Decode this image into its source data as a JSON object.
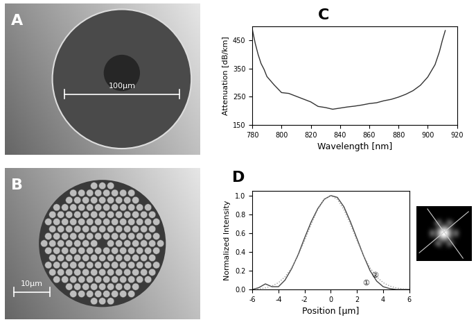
{
  "chart_data": [
    {
      "type": "line",
      "title": "C",
      "x_label": "Wavelength [nm]",
      "y_label": "Attenuation [dB/km]",
      "x": [
        780,
        782,
        784,
        786,
        788,
        790,
        795,
        800,
        805,
        810,
        815,
        820,
        825,
        830,
        835,
        840,
        845,
        850,
        855,
        860,
        865,
        870,
        875,
        880,
        885,
        890,
        895,
        900,
        905,
        908,
        910,
        912
      ],
      "series": [
        {
          "color": "#333333",
          "line_style": "solid",
          "values": [
            490,
            440,
            400,
            368,
            348,
            322,
            292,
            265,
            262,
            252,
            242,
            232,
            216,
            212,
            206,
            210,
            214,
            217,
            221,
            226,
            229,
            236,
            241,
            249,
            259,
            272,
            291,
            320,
            364,
            410,
            450,
            485
          ]
        }
      ],
      "xlim": [
        780,
        920
      ],
      "xticks": [
        780,
        800,
        820,
        840,
        860,
        880,
        900,
        920
      ],
      "ylim": [
        150,
        500
      ],
      "yticks": [
        150,
        250,
        350,
        450
      ],
      "grid": false
    },
    {
      "type": "line",
      "title": "D",
      "x_label": "Position [µm]",
      "y_label": "Normalized Intensity",
      "x": [
        -6,
        -5.5,
        -5,
        -4.5,
        -4,
        -3.5,
        -3,
        -2.5,
        -2,
        -1.5,
        -1,
        -0.5,
        0,
        0.5,
        1,
        1.5,
        2,
        2.5,
        3,
        3.5,
        4,
        4.5,
        5,
        5.5,
        6
      ],
      "series": [
        {
          "color": "#444444",
          "line_style": "solid",
          "values": [
            0.0,
            0.02,
            0.06,
            0.03,
            0.03,
            0.1,
            0.22,
            0.37,
            0.55,
            0.72,
            0.86,
            0.96,
            1.0,
            0.98,
            0.88,
            0.72,
            0.54,
            0.36,
            0.2,
            0.09,
            0.03,
            0.01,
            0.0,
            0.0,
            0.0
          ]
        },
        {
          "color": "#999999",
          "line_style": "dotted",
          "values": [
            0.003,
            0.007,
            0.017,
            0.037,
            0.073,
            0.135,
            0.23,
            0.36,
            0.52,
            0.693,
            0.849,
            0.96,
            1.0,
            0.96,
            0.849,
            0.693,
            0.52,
            0.36,
            0.23,
            0.135,
            0.073,
            0.037,
            0.017,
            0.007,
            0.003
          ]
        }
      ],
      "annotations": [
        {
          "text": "①",
          "x": 2.7,
          "y": 0.07
        },
        {
          "text": "②",
          "x": 3.4,
          "y": 0.15
        }
      ],
      "xlim": [
        -6,
        6
      ],
      "xticks": [
        -6,
        -4,
        -2,
        0,
        2,
        4,
        6
      ],
      "ylim": [
        0,
        1.05
      ],
      "yticks": [
        {
          "value": 0.0,
          "label": "0.0"
        },
        0.2,
        0.4,
        0.6,
        0.8,
        {
          "value": 1.0,
          "label": "1.0"
        }
      ],
      "grid": false
    }
  ],
  "images": [
    {
      "label": "A",
      "scale_bar": "100µm"
    },
    {
      "label": "B",
      "scale_bar": "10µm"
    }
  ]
}
